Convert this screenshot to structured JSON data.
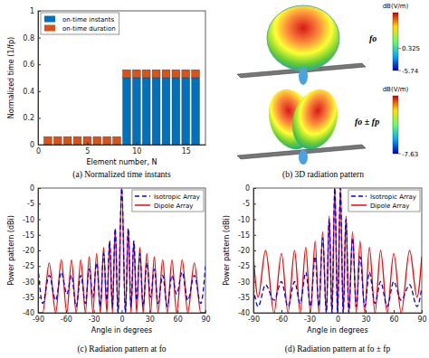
{
  "chart_data": [
    {
      "type": "bar",
      "title": "(a) Normalized time instants",
      "stacked": true,
      "legend": "upper left",
      "x_label": "Element number, N",
      "y_label": "Normalized time (1/fp)",
      "x": [
        1,
        2,
        3,
        4,
        5,
        6,
        7,
        8,
        9,
        10,
        11,
        12,
        13,
        14,
        15,
        16
      ],
      "xlim": [
        0,
        17
      ],
      "xticks": [
        0,
        5,
        10,
        15
      ],
      "ylim": [
        0,
        1
      ],
      "yticks": [
        0,
        0.2,
        0.4,
        0.6,
        0.8,
        1
      ],
      "series": [
        {
          "name": "on-time instants",
          "color": "#0072bd",
          "values": [
            0,
            0,
            0,
            0,
            0,
            0,
            0,
            0,
            0.5,
            0.5,
            0.5,
            0.5,
            0.5,
            0.5,
            0.5,
            0.5
          ]
        },
        {
          "name": "on-time duration",
          "color": "#d95319",
          "values": [
            0.06,
            0.06,
            0.06,
            0.06,
            0.06,
            0.06,
            0.06,
            0.06,
            0.06,
            0.06,
            0.06,
            0.06,
            0.06,
            0.06,
            0.06,
            0.06
          ]
        }
      ]
    },
    {
      "type": "3d_pattern",
      "title": "(b) 3D radiation pattern",
      "views": [
        {
          "label": "fo",
          "colorbar": {
            "title": "dB(V/m)",
            "lim": [
              -5.74,
              10
            ],
            "ticks": [
              -5.74,
              0.325
            ]
          }
        },
        {
          "label": "fo ± fp",
          "colorbar": {
            "title": "dB(V/m)",
            "lim": [
              -7.63,
              10
            ],
            "ticks": [
              -7.63
            ]
          }
        }
      ]
    },
    {
      "type": "line",
      "title": "(c) Radiation pattern at fo",
      "legend": "upper right",
      "x_label": "Angle in degrees",
      "y_label": "Power pattern (dBi)",
      "x": [
        -90,
        -85,
        -78,
        -71,
        -65,
        -59,
        -54,
        -49,
        -44,
        -39,
        -35,
        -31,
        -27,
        -23,
        -19.5,
        -16,
        -13,
        -10,
        -7,
        -4,
        0,
        4,
        7,
        10,
        13,
        16,
        19.5,
        23,
        27,
        31,
        35,
        39,
        44,
        49,
        54,
        59,
        65,
        71,
        78,
        85,
        90
      ],
      "xlim": [
        -90,
        90
      ],
      "xticks": [
        -90,
        -60,
        -30,
        0,
        30,
        60,
        90
      ],
      "ylim": [
        -40,
        0
      ],
      "yticks": [
        -40,
        -35,
        -30,
        -25,
        -20,
        -15,
        -10,
        -5,
        0
      ],
      "series": [
        {
          "name": "Isotropic Array",
          "color": "#0000ff",
          "line_style": "dashed",
          "values": [
            -25,
            -37,
            -28,
            -36,
            -27,
            -34,
            -28,
            -38,
            -28,
            -37,
            -26,
            -35,
            -24,
            -38,
            -21,
            -36,
            -17,
            -38,
            -13,
            -40,
            0,
            -40,
            -13,
            -38,
            -17,
            -36,
            -21,
            -38,
            -24,
            -35,
            -26,
            -37,
            -28,
            -38,
            -28,
            -34,
            -27,
            -36,
            -28,
            -37,
            -25
          ]
        },
        {
          "name": "Dipole Array",
          "color": "#ff0000",
          "line_style": "solid",
          "values": [
            -40,
            -40,
            -24,
            -40,
            -23,
            -40,
            -23,
            -40,
            -23,
            -40,
            -22,
            -40,
            -21,
            -40,
            -19,
            -40,
            -17,
            -40,
            -13,
            -40,
            0,
            -40,
            -13,
            -40,
            -17,
            -40,
            -19,
            -40,
            -21,
            -40,
            -22,
            -40,
            -23,
            -40,
            -23,
            -40,
            -23,
            -40,
            -24,
            -40,
            -40
          ]
        }
      ]
    },
    {
      "type": "line",
      "title": "(d) Radiation pattern at fo ± fp",
      "legend": "upper right",
      "x_label": "Angle in degrees",
      "y_label": "Power pattern (dBi)",
      "x": [
        -90,
        -85,
        -77,
        -68,
        -60,
        -53,
        -46,
        -40,
        -34,
        -29,
        -24,
        -20,
        -16,
        -12,
        -9,
        -6,
        -3,
        0,
        3,
        6,
        9,
        12,
        16,
        20,
        24,
        29,
        34,
        40,
        46,
        53,
        60,
        68,
        77,
        85,
        90
      ],
      "xlim": [
        -90,
        90
      ],
      "xticks": [
        -90,
        -60,
        -30,
        0,
        30,
        60,
        90
      ],
      "ylim": [
        -40,
        0
      ],
      "yticks": [
        -40,
        -35,
        -30,
        -25,
        -20,
        -15,
        -10,
        -5,
        0
      ],
      "series": [
        {
          "name": "Isotropic Array",
          "color": "#0000ff",
          "line_style": "dashed",
          "values": [
            -32,
            -38,
            -31,
            -36,
            -30,
            -38,
            -30,
            -37,
            -27,
            -38,
            -22,
            -38,
            -16,
            -40,
            -10,
            -40,
            0,
            -40,
            0,
            -40,
            -10,
            -40,
            -16,
            -38,
            -22,
            -38,
            -27,
            -37,
            -30,
            -38,
            -30,
            -36,
            -31,
            -38,
            -32
          ]
        },
        {
          "name": "Dipole Array",
          "color": "#ff0000",
          "line_style": "solid",
          "values": [
            -22,
            -35,
            -20,
            -40,
            -21,
            -40,
            -20,
            -40,
            -19,
            -40,
            -17,
            -40,
            -14,
            -40,
            -9,
            -40,
            0,
            -40,
            0,
            -40,
            -9,
            -40,
            -14,
            -40,
            -17,
            -40,
            -19,
            -40,
            -20,
            -40,
            -21,
            -40,
            -20,
            -35,
            -22
          ]
        }
      ]
    }
  ]
}
